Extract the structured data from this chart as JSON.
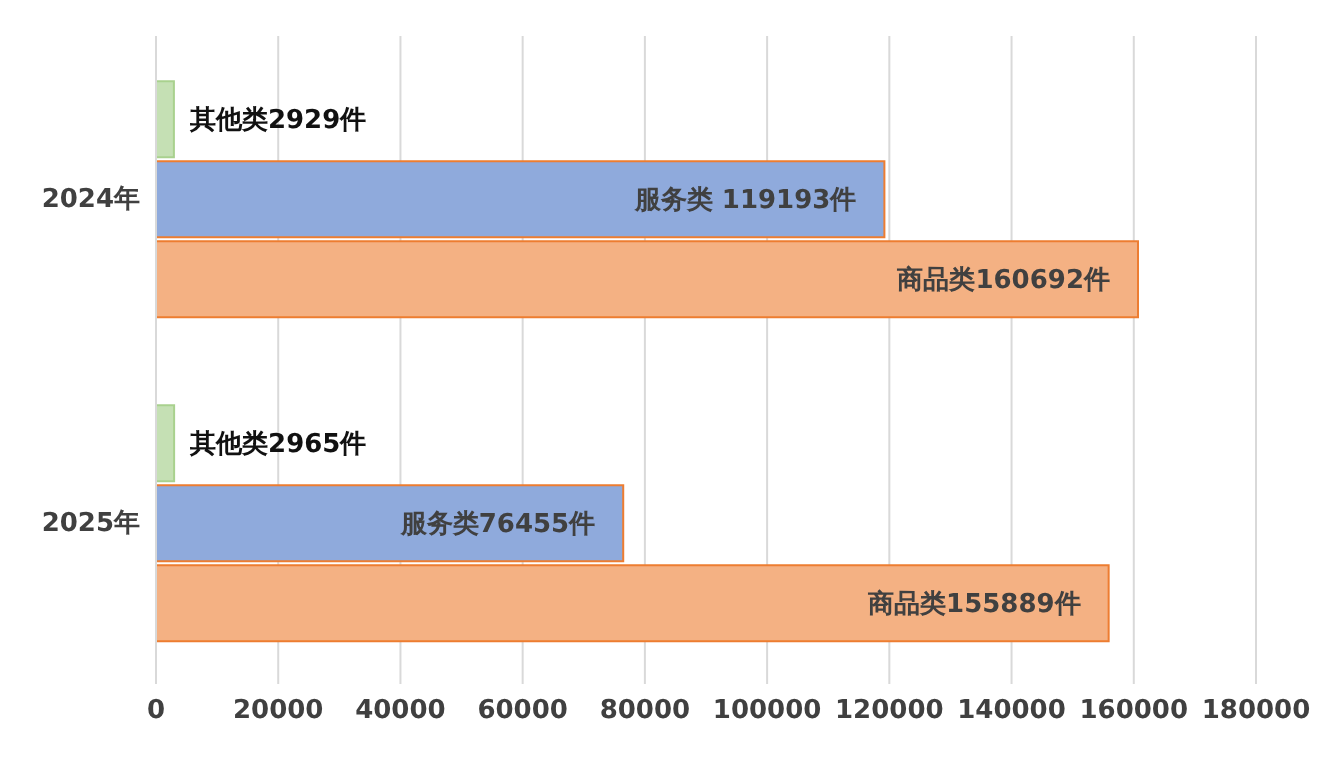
{
  "chart_data": {
    "type": "bar",
    "orientation": "horizontal",
    "categories": [
      "2024年",
      "2025年"
    ],
    "series": [
      {
        "color": "#c5e0b4",
        "values": [
          2929,
          2965
        ],
        "value_labels": [
          "其他类2929件",
          "其他类2965件"
        ]
      },
      {
        "color": "#8faadc",
        "values": [
          119193,
          76455
        ],
        "value_labels": [
          "服务类 119193件",
          "服务类76455件"
        ]
      },
      {
        "color": "#f4b183",
        "values": [
          160692,
          155889
        ],
        "value_labels": [
          "商品类160692件",
          "商品类155889件"
        ]
      }
    ],
    "xlim": [
      0,
      180000
    ],
    "xticks": [
      0,
      20000,
      40000,
      60000,
      80000,
      100000,
      120000,
      140000,
      160000,
      180000
    ],
    "grid": "x"
  }
}
